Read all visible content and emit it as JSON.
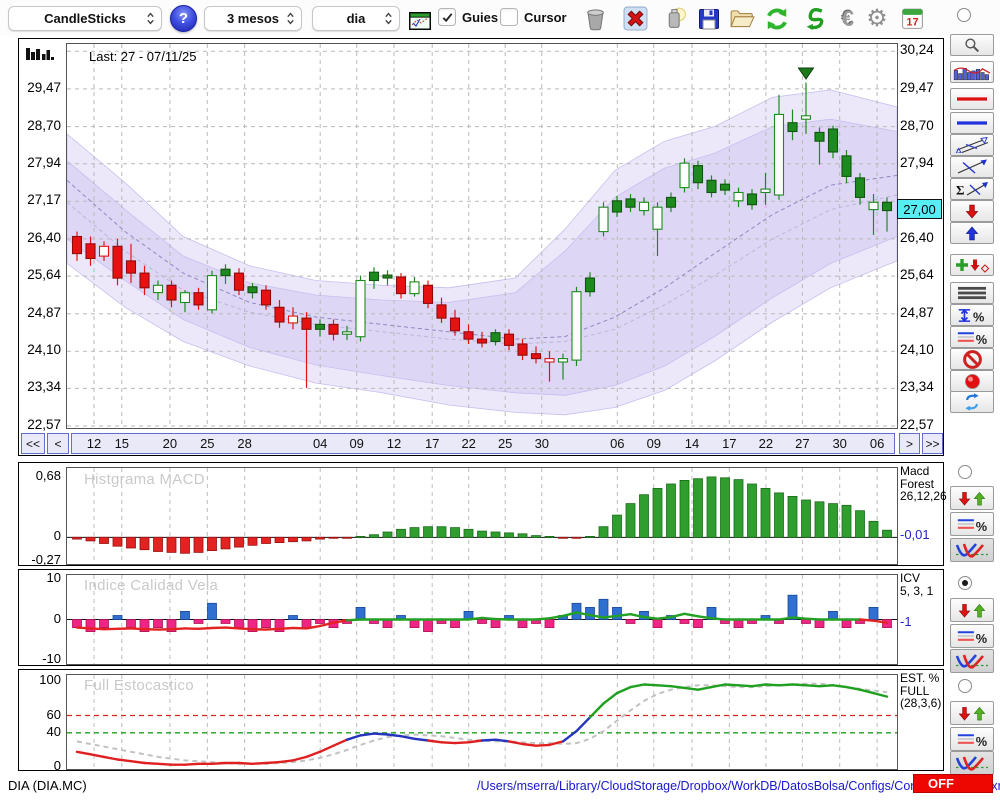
{
  "toolbar": {
    "chart_type": "CandleSticks",
    "help_label": "?",
    "period": "3 mesos",
    "interval": "dia",
    "guies_label": "Guies",
    "cursor_label": "Cursor",
    "calendar_day": "17",
    "icons": [
      "trash",
      "delete-red",
      "snapshot",
      "save",
      "open-folder",
      "refresh-green",
      "sync-green",
      "euro",
      "settings",
      "calendar"
    ]
  },
  "sidebar": {
    "top_radio_selected": false,
    "tools": [
      "zoom-tool",
      "indicator-chart",
      "red-hline",
      "blue-hline",
      "channel-tool",
      "trendline-tool",
      "sum-trendline-tool",
      "arrow-down-red",
      "arrow-up-blue",
      "add-markers",
      "list-lines",
      "vertical-percent",
      "lines-percent",
      "disable",
      "record",
      "refresh-blue"
    ],
    "panel_controls": [
      {
        "panel": "macd",
        "radio_selected": false,
        "buttons": [
          "updown-arrows",
          "lines-percent",
          "curves"
        ]
      },
      {
        "panel": "icv",
        "radio_selected": true,
        "buttons": [
          "updown-arrows",
          "lines-percent",
          "curves"
        ]
      },
      {
        "panel": "stoch",
        "radio_selected": false,
        "buttons": [
          "updown-arrows",
          "lines-percent",
          "curves"
        ]
      }
    ]
  },
  "status_bar": {
    "symbol": "DIA (DIA.MC)",
    "config_path": "/Users/mserra/Library/CloudStorage/Dropbox/WorkDB/DatosBolsa/Configs/Config.DEFAULT.xml",
    "off_label": "OFF"
  },
  "colors": {
    "candle_up": "#1d8a1d",
    "candle_down": "#e61212",
    "macd_pos": "#2f9e2f",
    "macd_neg": "#e32222",
    "icv_pos": "#2f6fd0",
    "icv_neg": "#ef2585",
    "stoch_high": "#1fa01f",
    "stoch_mid": "#2635bd",
    "stoch_low": "#e02020",
    "band_fill": "#ece8fa",
    "band_inner": "#ddd7f5",
    "price_highlight": "#58ecf4",
    "value_blue": "#2323cc",
    "off_red": "#ee0600"
  },
  "chart_data": [
    {
      "id": "price",
      "type": "candlestick",
      "last_label": "Last: 27 - 07/11/25",
      "ylim": [
        22.53,
        30.39
      ],
      "yticks": [
        {
          "v": 30.24,
          "l": "30,24",
          "right_only": true
        },
        {
          "v": 29.47,
          "l": "29,47"
        },
        {
          "v": 28.7,
          "l": "28,70"
        },
        {
          "v": 27.94,
          "l": "27,94"
        },
        {
          "v": 27.17,
          "l": "27,17",
          "left_only": true
        },
        {
          "v": 26.4,
          "l": "26,40"
        },
        {
          "v": 25.64,
          "l": "25,64"
        },
        {
          "v": 24.87,
          "l": "24,87"
        },
        {
          "v": 24.1,
          "l": "24,10"
        },
        {
          "v": 23.34,
          "l": "23,34"
        },
        {
          "v": 22.57,
          "l": "22,57"
        }
      ],
      "price_tag": {
        "v": 27.0,
        "label": "27,00"
      },
      "nav": {
        "first": "<<",
        "prev": "<",
        "next": ">",
        "last": ">>"
      },
      "xticks": [
        {
          "f": 0.0325,
          "l": "12"
        },
        {
          "f": 0.066,
          "l": "15"
        },
        {
          "f": 0.124,
          "l": "20"
        },
        {
          "f": 0.169,
          "l": "25"
        },
        {
          "f": 0.214,
          "l": "28"
        },
        {
          "f": 0.305,
          "l": "04"
        },
        {
          "f": 0.349,
          "l": "09"
        },
        {
          "f": 0.394,
          "l": "12"
        },
        {
          "f": 0.44,
          "l": "17"
        },
        {
          "f": 0.484,
          "l": "22"
        },
        {
          "f": 0.528,
          "l": "25"
        },
        {
          "f": 0.572,
          "l": "30"
        },
        {
          "f": 0.663,
          "l": "06"
        },
        {
          "f": 0.707,
          "l": "09"
        },
        {
          "f": 0.753,
          "l": "14"
        },
        {
          "f": 0.798,
          "l": "17"
        },
        {
          "f": 0.842,
          "l": "22"
        },
        {
          "f": 0.886,
          "l": "27"
        },
        {
          "f": 0.931,
          "l": "30"
        },
        {
          "f": 0.976,
          "l": "06"
        }
      ],
      "marker_index": 54,
      "candles": [
        [
          26.45,
          26.55,
          25.95,
          26.1,
          "rs"
        ],
        [
          26.3,
          26.45,
          25.85,
          26.0,
          "rs"
        ],
        [
          26.05,
          26.35,
          25.95,
          26.25,
          "rh"
        ],
        [
          26.25,
          26.4,
          25.45,
          25.6,
          "rs"
        ],
        [
          25.95,
          26.3,
          25.5,
          25.7,
          "rs"
        ],
        [
          25.7,
          25.85,
          25.25,
          25.4,
          "rs"
        ],
        [
          25.3,
          25.55,
          25.15,
          25.45,
          "gh"
        ],
        [
          25.45,
          25.55,
          25.0,
          25.15,
          "rs"
        ],
        [
          25.1,
          25.35,
          24.9,
          25.3,
          "gh"
        ],
        [
          25.3,
          25.4,
          24.95,
          25.05,
          "rs"
        ],
        [
          24.95,
          25.75,
          24.88,
          25.65,
          "gh"
        ],
        [
          25.65,
          25.88,
          25.48,
          25.78,
          "gs"
        ],
        [
          25.7,
          25.8,
          25.25,
          25.35,
          "rs"
        ],
        [
          25.3,
          25.5,
          25.18,
          25.42,
          "gs"
        ],
        [
          25.35,
          25.45,
          24.95,
          25.05,
          "rs"
        ],
        [
          25.0,
          25.15,
          24.58,
          24.7,
          "rs"
        ],
        [
          24.82,
          25.0,
          24.55,
          24.68,
          "rh"
        ],
        [
          24.78,
          24.9,
          23.35,
          24.55,
          "rs"
        ],
        [
          24.55,
          24.75,
          24.4,
          24.65,
          "gs"
        ],
        [
          24.65,
          24.75,
          24.32,
          24.45,
          "rs"
        ],
        [
          24.45,
          24.62,
          24.33,
          24.5,
          "gh"
        ],
        [
          24.4,
          25.65,
          24.3,
          25.55,
          "gh"
        ],
        [
          25.55,
          25.82,
          25.38,
          25.72,
          "gs"
        ],
        [
          25.6,
          25.76,
          25.45,
          25.66,
          "gs"
        ],
        [
          25.62,
          25.7,
          25.18,
          25.28,
          "rs"
        ],
        [
          25.28,
          25.62,
          25.22,
          25.52,
          "gh"
        ],
        [
          25.45,
          25.55,
          24.98,
          25.08,
          "rs"
        ],
        [
          25.05,
          25.2,
          24.68,
          24.78,
          "rs"
        ],
        [
          24.78,
          24.95,
          24.42,
          24.52,
          "rs"
        ],
        [
          24.5,
          24.65,
          24.25,
          24.35,
          "rs"
        ],
        [
          24.35,
          24.5,
          24.18,
          24.27,
          "rs"
        ],
        [
          24.3,
          24.55,
          24.22,
          24.48,
          "gs"
        ],
        [
          24.45,
          24.55,
          24.12,
          24.22,
          "rs"
        ],
        [
          24.25,
          24.35,
          23.92,
          24.02,
          "rs"
        ],
        [
          24.05,
          24.2,
          23.85,
          23.95,
          "rs"
        ],
        [
          23.95,
          24.1,
          23.48,
          23.88,
          "rh"
        ],
        [
          23.88,
          24.05,
          23.52,
          23.95,
          "gh"
        ],
        [
          23.92,
          25.42,
          23.8,
          25.32,
          "gh"
        ],
        [
          25.32,
          25.72,
          25.22,
          25.6,
          "gs"
        ],
        [
          26.55,
          27.15,
          26.45,
          27.05,
          "gh"
        ],
        [
          26.95,
          27.28,
          26.85,
          27.18,
          "gs"
        ],
        [
          27.05,
          27.32,
          26.95,
          27.22,
          "gs"
        ],
        [
          26.98,
          27.25,
          26.88,
          27.15,
          "gh"
        ],
        [
          26.6,
          27.15,
          26.05,
          27.05,
          "gh"
        ],
        [
          27.05,
          27.35,
          26.95,
          27.25,
          "gs"
        ],
        [
          27.45,
          28.05,
          27.35,
          27.95,
          "gh"
        ],
        [
          27.55,
          28.0,
          27.42,
          27.9,
          "gs"
        ],
        [
          27.35,
          27.7,
          27.25,
          27.6,
          "gs"
        ],
        [
          27.4,
          27.62,
          27.3,
          27.52,
          "gs"
        ],
        [
          27.18,
          27.45,
          27.05,
          27.35,
          "gh"
        ],
        [
          27.1,
          27.42,
          27.0,
          27.32,
          "gs"
        ],
        [
          27.35,
          27.75,
          27.1,
          27.42,
          "gh"
        ],
        [
          27.3,
          29.35,
          27.2,
          28.95,
          "gh"
        ],
        [
          28.6,
          29.05,
          28.42,
          28.78,
          "gs"
        ],
        [
          28.85,
          29.6,
          28.55,
          28.92,
          "gh"
        ],
        [
          28.4,
          28.68,
          27.92,
          28.58,
          "gs"
        ],
        [
          28.65,
          28.72,
          28.05,
          28.18,
          "gs"
        ],
        [
          28.1,
          28.22,
          27.55,
          27.68,
          "gs"
        ],
        [
          27.65,
          27.75,
          27.1,
          27.25,
          "gs"
        ],
        [
          27.0,
          27.32,
          26.48,
          27.15,
          "gh"
        ],
        [
          27.15,
          27.25,
          26.55,
          26.98,
          "gs"
        ]
      ],
      "bands": {
        "fx": [
          0,
          0.07,
          0.14,
          0.22,
          0.3,
          0.38,
          0.46,
          0.54,
          0.6,
          0.66,
          0.72,
          0.78,
          0.85,
          0.92,
          1.0
        ],
        "ou": [
          28.55,
          27.55,
          26.45,
          25.85,
          25.55,
          25.45,
          25.4,
          25.6,
          26.6,
          27.8,
          28.4,
          28.7,
          29.3,
          29.45,
          29.1
        ],
        "ol": [
          25.9,
          25.0,
          24.3,
          23.8,
          23.45,
          23.25,
          23.0,
          22.85,
          22.8,
          22.95,
          23.3,
          23.9,
          24.7,
          25.4,
          25.95
        ],
        "iu": [
          28.0,
          27.0,
          26.05,
          25.5,
          25.25,
          25.15,
          25.1,
          25.3,
          26.15,
          27.25,
          27.85,
          28.15,
          28.7,
          28.85,
          28.6
        ],
        "il": [
          26.4,
          25.55,
          24.75,
          24.18,
          23.82,
          23.6,
          23.4,
          23.25,
          23.2,
          23.4,
          23.8,
          24.4,
          25.2,
          25.9,
          26.45
        ],
        "mid": [
          27.6,
          26.55,
          25.7,
          25.1,
          24.8,
          24.65,
          24.5,
          24.35,
          24.4,
          24.8,
          25.4,
          26.1,
          26.9,
          27.5,
          27.7
        ],
        "mid2": [
          27.15,
          26.15,
          25.35,
          24.9,
          24.65,
          24.5,
          24.35,
          24.25,
          24.3,
          24.55,
          25.05,
          25.65,
          26.4,
          27.0,
          27.3
        ]
      }
    },
    {
      "id": "macd",
      "type": "bar",
      "watermark": "Histgrama MACD",
      "ylim": [
        -0.3,
        0.78
      ],
      "yticks": [
        {
          "v": 0.68,
          "l": "0,68"
        },
        {
          "v": 0,
          "l": "0"
        },
        {
          "v": -0.27,
          "l": "-0,27"
        }
      ],
      "values": [
        -0.02,
        -0.04,
        -0.07,
        -0.1,
        -0.12,
        -0.14,
        -0.16,
        -0.17,
        -0.18,
        -0.17,
        -0.15,
        -0.13,
        -0.11,
        -0.09,
        -0.07,
        -0.06,
        -0.05,
        -0.04,
        -0.02,
        -0.01,
        -0.01,
        0.01,
        0.03,
        0.06,
        0.09,
        0.11,
        0.12,
        0.12,
        0.11,
        0.09,
        0.07,
        0.06,
        0.05,
        0.04,
        0.02,
        0.01,
        -0.01,
        -0.01,
        0.01,
        0.12,
        0.25,
        0.38,
        0.48,
        0.55,
        0.6,
        0.64,
        0.66,
        0.68,
        0.67,
        0.65,
        0.6,
        0.55,
        0.5,
        0.46,
        0.42,
        0.4,
        0.38,
        0.36,
        0.3,
        0.18,
        0.08
      ],
      "right_lines": [
        "Macd",
        "Forest",
        "26,12,26"
      ],
      "value_label": "-0,01"
    },
    {
      "id": "icv",
      "type": "bar-line",
      "watermark": "Indice Calidad Vela",
      "ylim": [
        -11,
        11
      ],
      "yticks": [
        {
          "v": 10,
          "l": "10"
        },
        {
          "v": 0,
          "l": "0"
        },
        {
          "v": -10,
          "l": "-10"
        }
      ],
      "bars": [
        -2,
        -3,
        -2,
        1,
        -2,
        -3,
        -2,
        -3,
        2,
        -1,
        4,
        -1,
        -2,
        -3,
        -2,
        -3,
        1,
        -2,
        -1,
        -2,
        -1,
        3,
        -1,
        -2,
        1,
        -2,
        -3,
        -1,
        -2,
        2,
        -1,
        -2,
        1,
        -2,
        -1,
        -2,
        1,
        4,
        3,
        5,
        3,
        -1,
        2,
        -2,
        1,
        -1,
        -2,
        3,
        -1,
        -2,
        -1,
        1,
        -1,
        6,
        -1,
        -2,
        2,
        -2,
        -1,
        3,
        -2
      ],
      "line": [
        -2.0,
        -2.2,
        -2.4,
        -2.3,
        -2.2,
        -2.4,
        -2.5,
        -2.4,
        -2.2,
        -2.3,
        -2.1,
        -2.0,
        -2.2,
        -2.4,
        -2.5,
        -2.3,
        -2.1,
        -2.2,
        -1.6,
        -0.8,
        -0.2,
        0,
        0,
        0,
        0,
        0,
        0,
        0,
        0,
        0,
        0.4,
        0.1,
        0,
        0,
        0,
        0.3,
        0.9,
        1.7,
        1.1,
        0.5,
        0.9,
        1.3,
        0.6,
        0.2,
        0.6,
        1.4,
        0.8,
        0.3,
        0,
        0,
        0,
        0,
        0,
        0.5,
        0.2,
        0,
        0,
        0,
        0,
        -0.3,
        -0.8
      ],
      "right_lines": [
        "ICV",
        "5, 3, 1"
      ],
      "value_label": "-1"
    },
    {
      "id": "stoch",
      "type": "line",
      "watermark": "Full Estocastico",
      "ylim": [
        -2,
        107
      ],
      "yticks": [
        {
          "v": 100,
          "l": "100"
        },
        {
          "v": 60,
          "l": "60"
        },
        {
          "v": 40,
          "l": "40"
        },
        {
          "v": 0,
          "l": "0"
        }
      ],
      "hlines": [
        {
          "v": 60,
          "color": "#dd2222"
        },
        {
          "v": 40,
          "color": "#1e9e1e"
        }
      ],
      "k": [
        18,
        15,
        12,
        9,
        7,
        5,
        4,
        3,
        3,
        4,
        4,
        5,
        5,
        4,
        5,
        6,
        8,
        12,
        18,
        25,
        32,
        37,
        39,
        38,
        36,
        33,
        31,
        29,
        28,
        29,
        31,
        32,
        30,
        27,
        25,
        26,
        30,
        42,
        58,
        74,
        86,
        93,
        96,
        95,
        94,
        92,
        90,
        93,
        96,
        95,
        94,
        96,
        95,
        96,
        95,
        94,
        95,
        93,
        90,
        86,
        82
      ],
      "d": [
        30,
        27,
        24,
        21,
        18,
        15,
        12,
        10,
        8,
        7,
        6,
        5,
        4,
        4,
        4,
        5,
        6,
        8,
        11,
        15,
        20,
        26,
        31,
        35,
        37,
        38,
        37,
        36,
        34,
        32,
        31,
        30,
        30,
        29,
        28,
        28,
        27,
        28,
        33,
        42,
        54,
        66,
        77,
        85,
        90,
        93,
        95,
        95,
        94,
        93,
        93,
        94,
        95,
        96,
        97,
        97,
        95,
        93,
        91,
        89,
        87
      ],
      "right_lines": [
        "EST. %",
        "FULL",
        "(28,3,6)"
      ]
    }
  ]
}
